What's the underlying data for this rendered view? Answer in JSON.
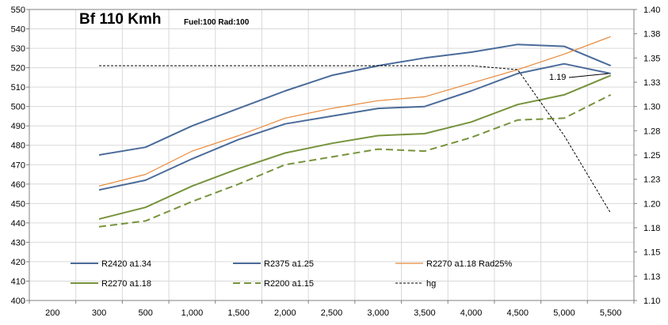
{
  "chart_data": {
    "type": "line",
    "title": "Bf 110 Kmh",
    "subtitle": "Fuel:100 Rad:100",
    "x": [
      300,
      500,
      1000,
      1500,
      2000,
      2500,
      3000,
      3500,
      4000,
      4500,
      5000,
      5500
    ],
    "x_ticks": [
      "200",
      "300",
      "500",
      "1,000",
      "1,500",
      "2,000",
      "2,500",
      "3,000",
      "3,500",
      "4,000",
      "4,500",
      "5,000",
      "5,500"
    ],
    "ylim": [
      400,
      550
    ],
    "y_ticks": [
      "400",
      "410",
      "420",
      "430",
      "440",
      "450",
      "460",
      "470",
      "480",
      "490",
      "500",
      "510",
      "520",
      "530",
      "540",
      "550"
    ],
    "y2lim": [
      1.1,
      1.4
    ],
    "y2_ticks": [
      "1.10",
      "1.13",
      "1.15",
      "1.18",
      "1.20",
      "1.23",
      "1.25",
      "1.28",
      "1.30",
      "1.33",
      "1.35",
      "1.38",
      "1.40"
    ],
    "grid": true,
    "legend_position": "bottom",
    "series": [
      {
        "name": "R2420 a1.34",
        "axis": "left",
        "color": "#4a6b9a",
        "width": 2,
        "dash": "",
        "values": [
          475,
          479,
          490,
          499,
          508,
          516,
          521,
          525,
          528,
          532,
          531,
          521
        ]
      },
      {
        "name": "R2375 a1.25",
        "axis": "left",
        "color": "#4a6b9a",
        "width": 2,
        "dash": "",
        "values": [
          457,
          462,
          473,
          483,
          491,
          495,
          499,
          500,
          508,
          517,
          522,
          517
        ]
      },
      {
        "name": "R2270 a1.18 Rad25%",
        "axis": "left",
        "color": "#e8893a",
        "width": 1.2,
        "dash": "",
        "values": [
          459,
          465,
          477,
          485,
          494,
          499,
          503,
          505,
          512,
          519,
          527,
          536
        ]
      },
      {
        "name": "R2270 a1.18",
        "axis": "left",
        "color": "#77933c",
        "width": 2,
        "dash": "",
        "values": [
          442,
          448,
          459,
          468,
          476,
          481,
          485,
          486,
          492,
          501,
          506,
          516
        ]
      },
      {
        "name": "R2200 a1.15",
        "axis": "left",
        "color": "#77933c",
        "width": 2,
        "dash": "9,5",
        "values": [
          438,
          441,
          451,
          460,
          470,
          474,
          478,
          477,
          484,
          493,
          494,
          506
        ]
      },
      {
        "name": "hg",
        "axis": "right",
        "color": "#000000",
        "width": 1,
        "dash": "3,2",
        "values": [
          1.342,
          1.342,
          1.342,
          1.342,
          1.342,
          1.342,
          1.342,
          1.342,
          1.342,
          1.338,
          1.27,
          1.19
        ]
      }
    ],
    "annotations": [
      {
        "text": "1.19"
      }
    ]
  }
}
